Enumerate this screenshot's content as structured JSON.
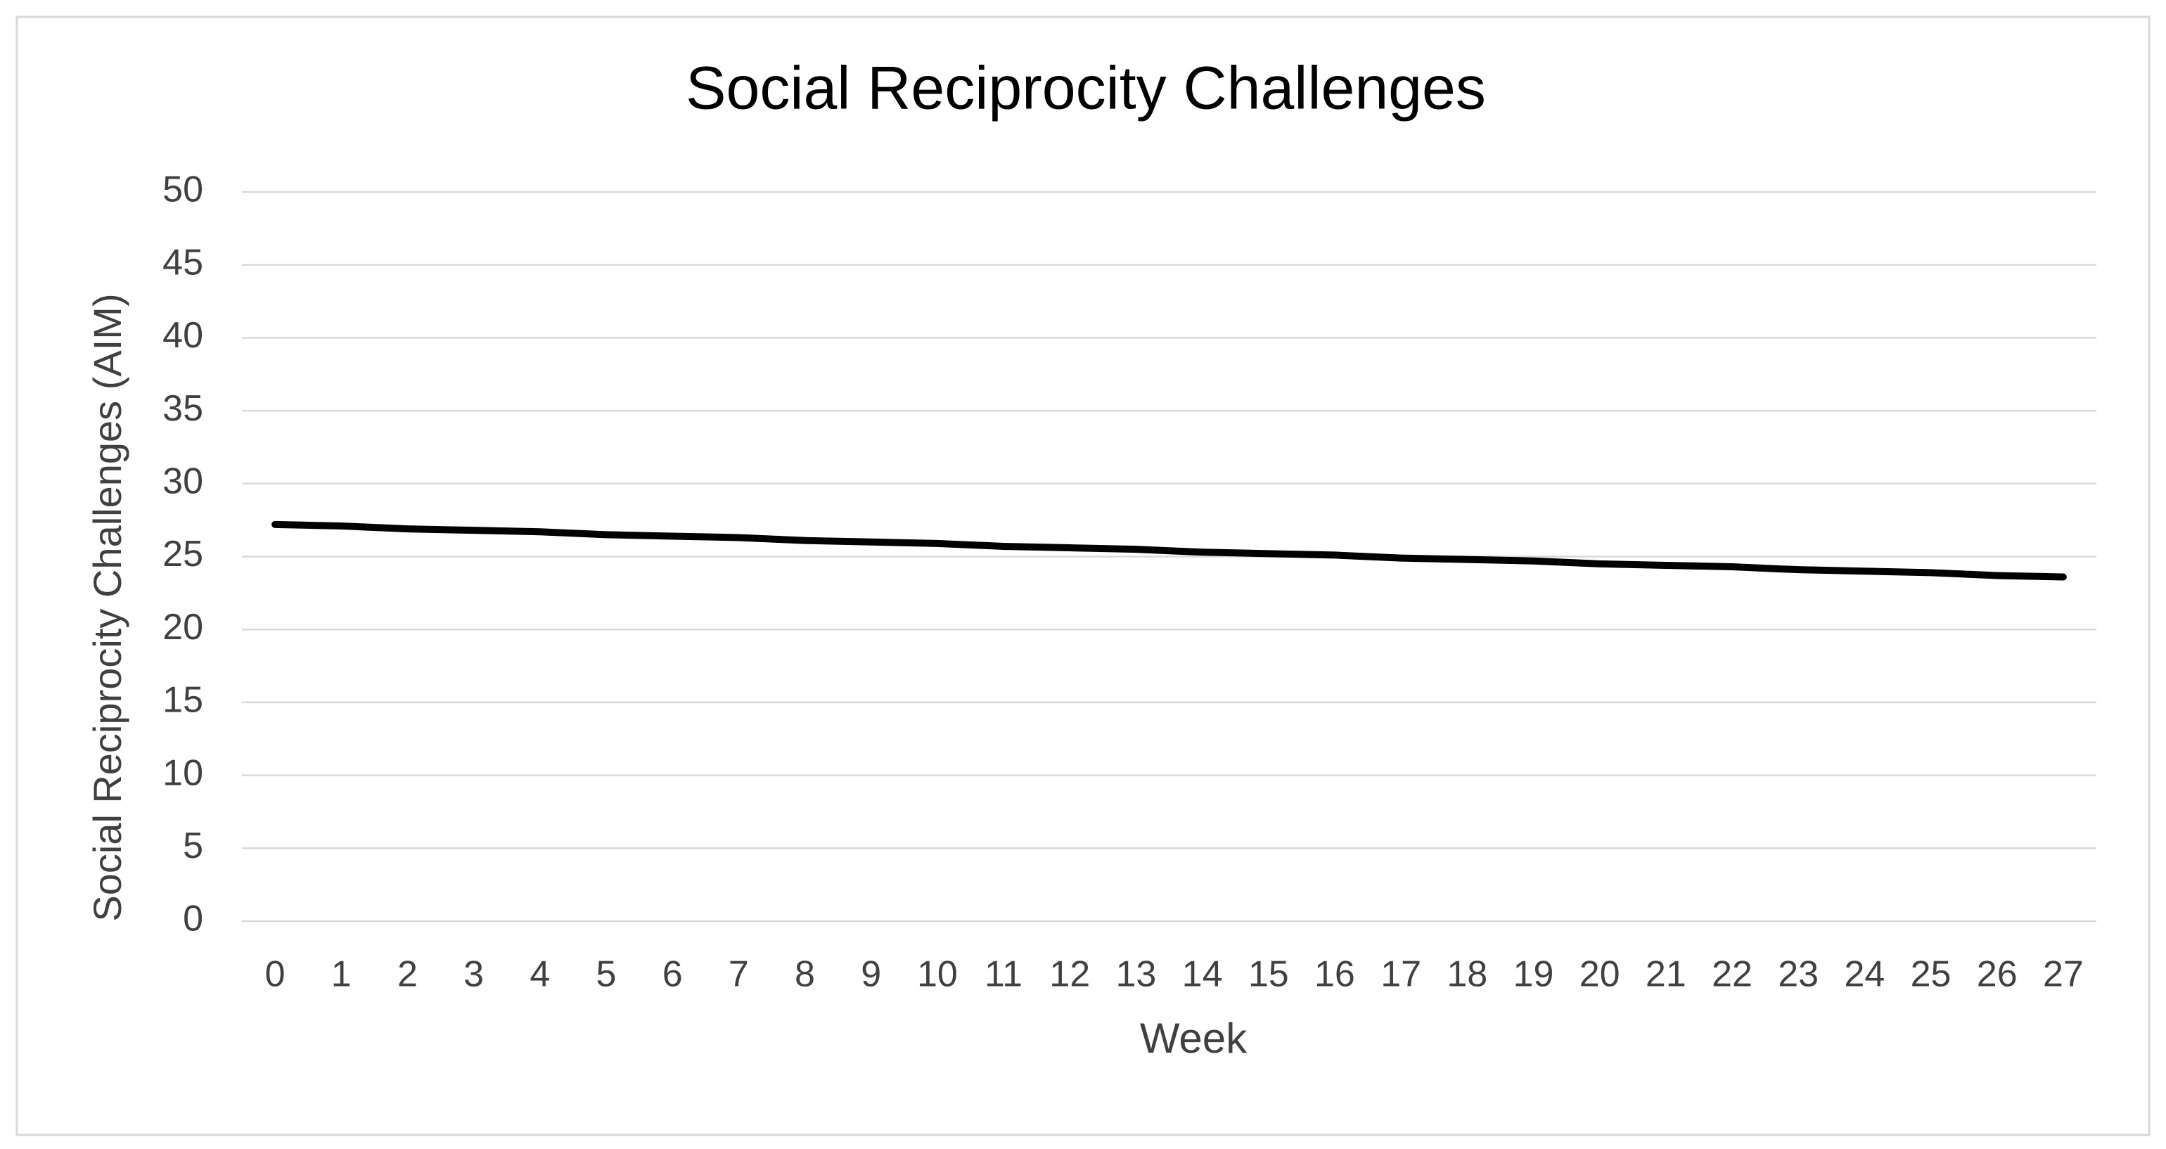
{
  "chart_data": {
    "type": "line",
    "title": "Social Reciprocity Challenges",
    "x_label": "Week",
    "y_label": "Social Reciprocity  Challenges  (AIM)",
    "categories": [
      "0",
      "1",
      "2",
      "3",
      "4",
      "5",
      "6",
      "7",
      "8",
      "9",
      "10",
      "11",
      "12",
      "13",
      "14",
      "15",
      "16",
      "17",
      "18",
      "19",
      "20",
      "21",
      "22",
      "23",
      "24",
      "25",
      "26",
      "27"
    ],
    "values": [
      27.2,
      27.1,
      26.9,
      26.8,
      26.7,
      26.5,
      26.4,
      26.3,
      26.1,
      26.0,
      25.9,
      25.7,
      25.6,
      25.5,
      25.3,
      25.2,
      25.1,
      24.9,
      24.8,
      24.7,
      24.5,
      24.4,
      24.3,
      24.1,
      24.0,
      23.9,
      23.7,
      23.6
    ],
    "color": "#000000",
    "ylim": [
      0,
      50
    ],
    "yticks": [
      0,
      5,
      10,
      15,
      20,
      25,
      30,
      35,
      40,
      45,
      50
    ],
    "grid": true
  }
}
